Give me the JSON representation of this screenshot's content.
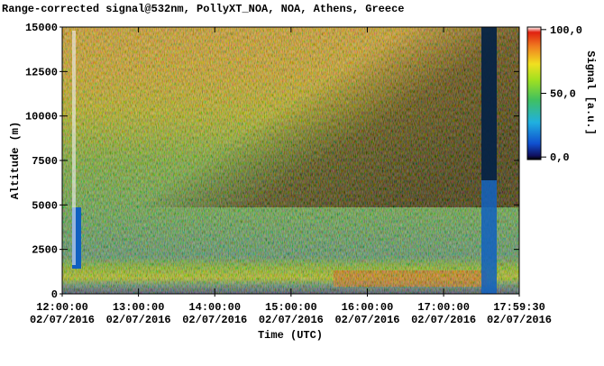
{
  "chart_data": {
    "type": "heatmap",
    "title": "Range-corrected signal@532nm, PollyXT_NOA, NOA, Athens, Greece",
    "x_label": "Time (UTC)",
    "y_label": "Altitude (m)",
    "colorbar_label": "Signal [a.u.]",
    "xlim": [
      12,
      17.991667
    ],
    "xticks": [
      {
        "value": 12,
        "label": "12:00:00"
      },
      {
        "value": 13,
        "label": "13:00:00"
      },
      {
        "value": 14,
        "label": "14:00:00"
      },
      {
        "value": 15,
        "label": "15:00:00"
      },
      {
        "value": 16,
        "label": "16:00:00"
      },
      {
        "value": 17,
        "label": "17:00:00"
      },
      {
        "value": 17.991667,
        "label": "17:59:30"
      }
    ],
    "xtick_dates": [
      "02/07/2016",
      "02/07/2016",
      "02/07/2016",
      "02/07/2016",
      "02/07/2016",
      "02/07/2016",
      "02/07/2016"
    ],
    "ylim": [
      0,
      15000
    ],
    "yticks": [
      0,
      2500,
      5000,
      7500,
      10000,
      12500,
      15000
    ],
    "clim": [
      -2,
      102
    ],
    "cticks": [
      {
        "value": 0,
        "label": "0,0"
      },
      {
        "value": 50,
        "label": "50,0"
      },
      {
        "value": 100,
        "label": "100,0"
      }
    ]
  }
}
